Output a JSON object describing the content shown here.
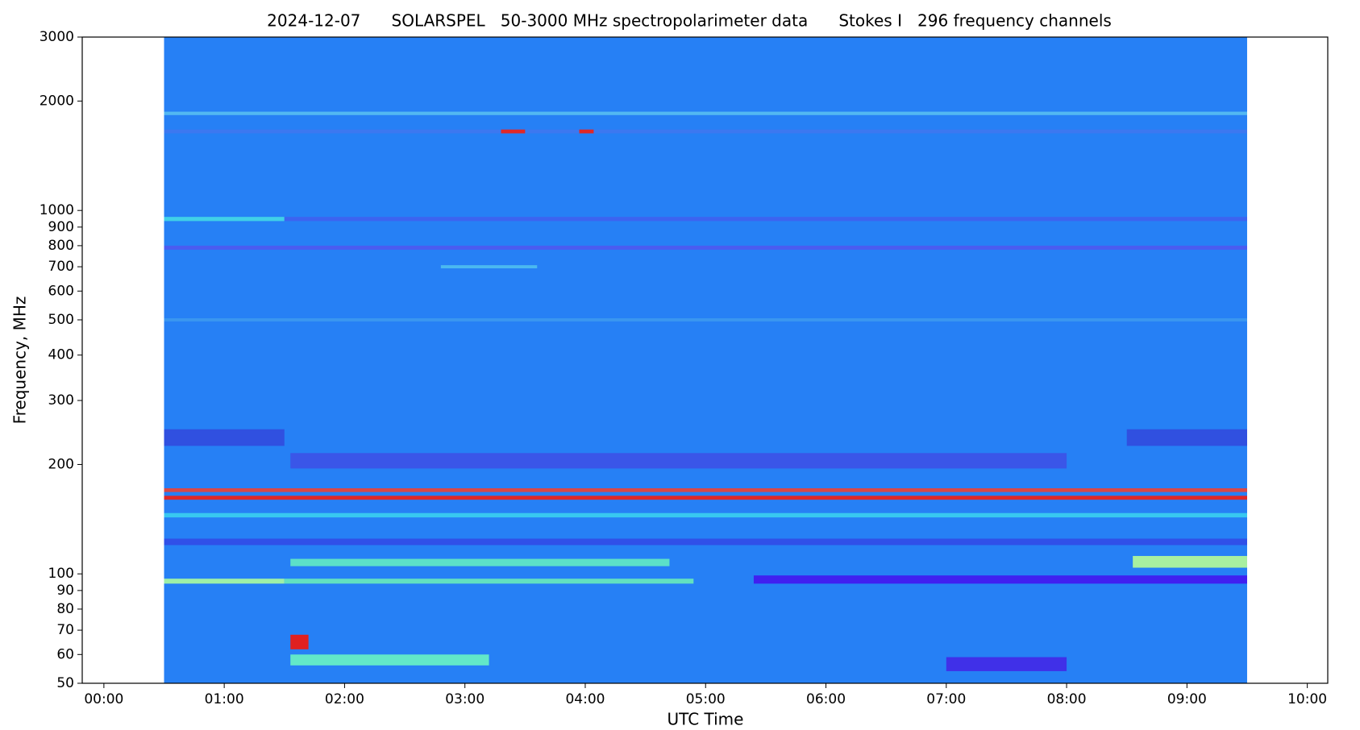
{
  "chart_data": {
    "type": "spectrogram",
    "title": "2024-12-07      SOLARSPEL   50-3000 MHz spectropolarimeter data      Stokes I   296 frequency channels",
    "xlabel": "UTC Time",
    "ylabel": "Frequency, MHz",
    "xlim": [
      -0.18,
      10.17
    ],
    "ylim": [
      50,
      3000
    ],
    "yscale": "log",
    "xticks": [
      {
        "value": 0,
        "label": "00:00"
      },
      {
        "value": 1,
        "label": "01:00"
      },
      {
        "value": 2,
        "label": "02:00"
      },
      {
        "value": 3,
        "label": "03:00"
      },
      {
        "value": 4,
        "label": "04:00"
      },
      {
        "value": 5,
        "label": "05:00"
      },
      {
        "value": 6,
        "label": "06:00"
      },
      {
        "value": 7,
        "label": "07:00"
      },
      {
        "value": 8,
        "label": "08:00"
      },
      {
        "value": 9,
        "label": "09:00"
      },
      {
        "value": 10,
        "label": "10:00"
      }
    ],
    "yticks": [
      50,
      60,
      70,
      80,
      90,
      100,
      200,
      300,
      400,
      500,
      600,
      700,
      800,
      900,
      1000,
      2000,
      3000
    ],
    "data_xrange": [
      0.5,
      9.5
    ],
    "background_color": "#2680f5",
    "bands": [
      {
        "y": [
          1830,
          1870
        ],
        "x": [
          0.5,
          9.5
        ],
        "color": "#52b8f2"
      },
      {
        "y": [
          1630,
          1670
        ],
        "x": [
          0.5,
          9.5
        ],
        "color": "#3c78f0"
      },
      {
        "y": [
          1630,
          1670
        ],
        "x": [
          3.3,
          3.5
        ],
        "color": "#e02828"
      },
      {
        "y": [
          1630,
          1670
        ],
        "x": [
          3.95,
          4.07
        ],
        "color": "#e02828"
      },
      {
        "y": [
          935,
          960
        ],
        "x": [
          0.5,
          1.5
        ],
        "color": "#40d0e8"
      },
      {
        "y": [
          935,
          960
        ],
        "x": [
          1.5,
          9.5
        ],
        "color": "#3c64f0"
      },
      {
        "y": [
          780,
          800
        ],
        "x": [
          0.5,
          9.5
        ],
        "color": "#4a5cf0"
      },
      {
        "y": [
          693,
          707
        ],
        "x": [
          2.8,
          3.6
        ],
        "color": "#4ab8f0"
      },
      {
        "y": [
          495,
          505
        ],
        "x": [
          0.5,
          9.5
        ],
        "color": "#3a96f0"
      },
      {
        "y": [
          225,
          250
        ],
        "x": [
          0.5,
          1.5
        ],
        "color": "#3050e0"
      },
      {
        "y": [
          225,
          250
        ],
        "x": [
          8.5,
          9.5
        ],
        "color": "#3050e0"
      },
      {
        "y": [
          195,
          215
        ],
        "x": [
          1.55,
          8.0
        ],
        "color": "#3a56e8"
      },
      {
        "y": [
          168,
          172
        ],
        "x": [
          0.5,
          9.5
        ],
        "color": "#d84848"
      },
      {
        "y": [
          160,
          164
        ],
        "x": [
          0.5,
          9.5
        ],
        "color": "#e02828"
      },
      {
        "y": [
          143,
          147
        ],
        "x": [
          0.5,
          9.5
        ],
        "color": "#38c8f0"
      },
      {
        "y": [
          120,
          125
        ],
        "x": [
          0.5,
          9.5
        ],
        "color": "#3050e8"
      },
      {
        "y": [
          105,
          110
        ],
        "x": [
          1.55,
          4.7
        ],
        "color": "#5ce0c8"
      },
      {
        "y": [
          104,
          112
        ],
        "x": [
          8.55,
          9.5
        ],
        "color": "#a8f0a0"
      },
      {
        "y": [
          94,
          97
        ],
        "x": [
          0.5,
          1.5
        ],
        "color": "#9ef0a8"
      },
      {
        "y": [
          94,
          97
        ],
        "x": [
          1.5,
          4.9
        ],
        "color": "#62e0c0"
      },
      {
        "y": [
          94,
          99
        ],
        "x": [
          5.4,
          9.5
        ],
        "color": "#4020f0"
      },
      {
        "y": [
          56,
          60
        ],
        "x": [
          1.55,
          3.2
        ],
        "color": "#62e8c8"
      },
      {
        "y": [
          62,
          68
        ],
        "x": [
          1.55,
          1.7
        ],
        "color": "#e02020"
      },
      {
        "y": [
          54,
          59
        ],
        "x": [
          7.0,
          8.0
        ],
        "color": "#4030e8"
      }
    ]
  }
}
